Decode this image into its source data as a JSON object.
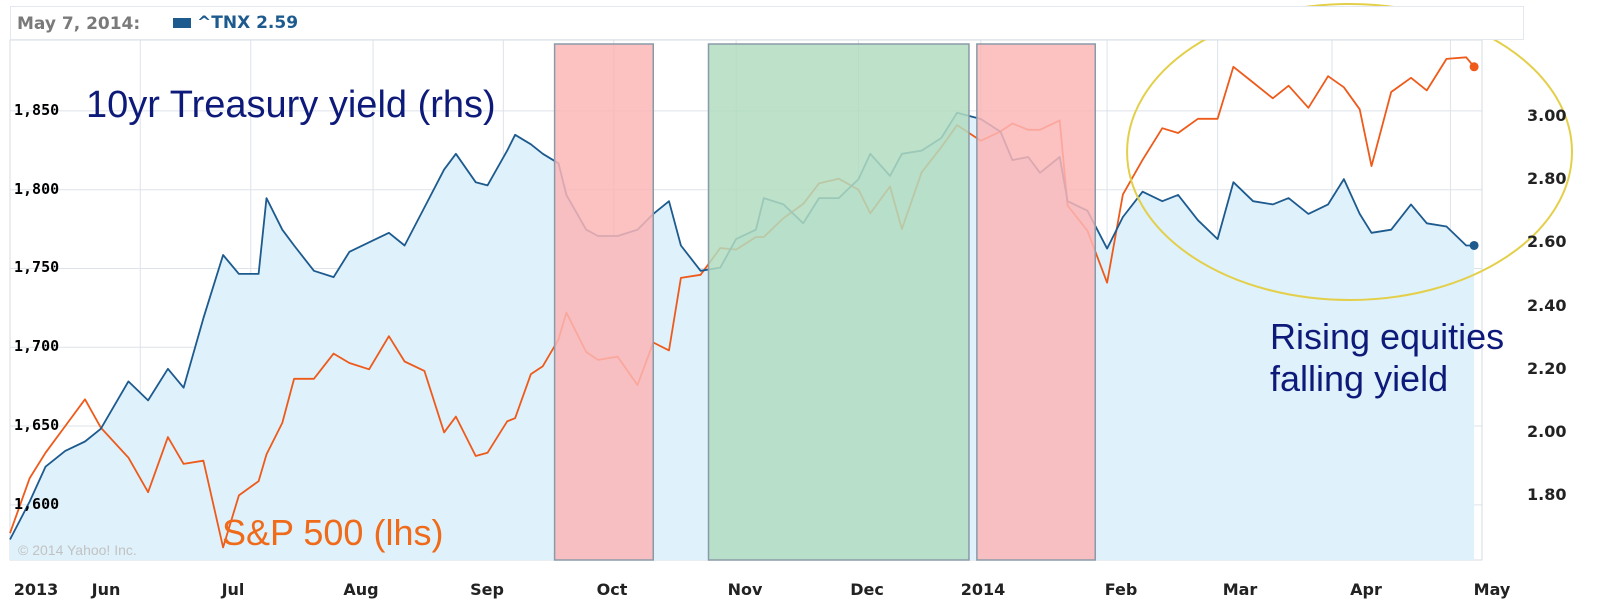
{
  "header": {
    "date": "May 7, 2014:",
    "series_label": "^TNX 2.59",
    "series_color": "#1d5a8e"
  },
  "copyright": "© 2014 Yahoo! Inc.",
  "annotations": {
    "tnx_label": "10yr Treasury yield (rhs)",
    "spx_label": "S&P 500 (lhs)",
    "rising_line1": "Rising equities",
    "rising_line2": "falling yield"
  },
  "chart_data": {
    "type": "line",
    "x_labels": [
      "2013",
      "Jun",
      "Jul",
      "Aug",
      "Sep",
      "Oct",
      "Nov",
      "Dec",
      "2014",
      "Feb",
      "Mar",
      "Apr",
      "May"
    ],
    "left_axis": {
      "ticks": [
        "1,600",
        "1,650",
        "1,700",
        "1,750",
        "1,800",
        "1,850"
      ],
      "range": [
        1565,
        1895
      ]
    },
    "right_axis": {
      "ticks": [
        "1.80",
        "2.00",
        "2.20",
        "2.40",
        "2.60",
        "2.80",
        "3.00"
      ],
      "range": [
        1.595,
        3.24
      ]
    },
    "shaded_regions": [
      {
        "start": "2013-09-16",
        "end": "2013-10-11",
        "color": "#fbb6b6"
      },
      {
        "start": "2013-10-25",
        "end": "2013-12-30",
        "color": "#b2dcc0"
      },
      {
        "start": "2014-01-01",
        "end": "2014-01-31",
        "color": "#fbb6b6"
      }
    ],
    "highlight": {
      "shape": "ellipse",
      "start": "2014-02-03",
      "end": "2014-05-07",
      "color": "#e3cf4a"
    },
    "series": [
      {
        "name": "^TNX",
        "axis": "right",
        "color": "#1d5a8e",
        "fill": "#dff1fb",
        "points": [
          [
            "2013-05-01",
            1.66
          ],
          [
            "2013-05-06",
            1.78
          ],
          [
            "2013-05-10",
            1.89
          ],
          [
            "2013-05-15",
            1.94
          ],
          [
            "2013-05-20",
            1.97
          ],
          [
            "2013-05-24",
            2.01
          ],
          [
            "2013-05-31",
            2.16
          ],
          [
            "2013-06-05",
            2.1
          ],
          [
            "2013-06-10",
            2.2
          ],
          [
            "2013-06-14",
            2.14
          ],
          [
            "2013-06-19",
            2.36
          ],
          [
            "2013-06-24",
            2.56
          ],
          [
            "2013-06-28",
            2.5
          ],
          [
            "2013-07-03",
            2.5
          ],
          [
            "2013-07-05",
            2.74
          ],
          [
            "2013-07-09",
            2.64
          ],
          [
            "2013-07-12",
            2.59
          ],
          [
            "2013-07-17",
            2.51
          ],
          [
            "2013-07-22",
            2.49
          ],
          [
            "2013-07-26",
            2.57
          ],
          [
            "2013-07-31",
            2.6
          ],
          [
            "2013-08-05",
            2.63
          ],
          [
            "2013-08-09",
            2.59
          ],
          [
            "2013-08-14",
            2.71
          ],
          [
            "2013-08-19",
            2.83
          ],
          [
            "2013-08-22",
            2.88
          ],
          [
            "2013-08-27",
            2.79
          ],
          [
            "2013-08-30",
            2.78
          ],
          [
            "2013-09-04",
            2.89
          ],
          [
            "2013-09-06",
            2.94
          ],
          [
            "2013-09-10",
            2.91
          ],
          [
            "2013-09-13",
            2.88
          ],
          [
            "2013-09-17",
            2.85
          ],
          [
            "2013-09-19",
            2.75
          ],
          [
            "2013-09-24",
            2.64
          ],
          [
            "2013-09-27",
            2.62
          ],
          [
            "2013-10-02",
            2.62
          ],
          [
            "2013-10-07",
            2.64
          ],
          [
            "2013-10-11",
            2.69
          ],
          [
            "2013-10-15",
            2.73
          ],
          [
            "2013-10-18",
            2.59
          ],
          [
            "2013-10-23",
            2.51
          ],
          [
            "2013-10-28",
            2.52
          ],
          [
            "2013-11-01",
            2.61
          ],
          [
            "2013-11-06",
            2.64
          ],
          [
            "2013-11-08",
            2.74
          ],
          [
            "2013-11-13",
            2.72
          ],
          [
            "2013-11-18",
            2.66
          ],
          [
            "2013-11-22",
            2.74
          ],
          [
            "2013-11-27",
            2.74
          ],
          [
            "2013-12-02",
            2.8
          ],
          [
            "2013-12-05",
            2.88
          ],
          [
            "2013-12-10",
            2.81
          ],
          [
            "2013-12-13",
            2.88
          ],
          [
            "2013-12-18",
            2.89
          ],
          [
            "2013-12-23",
            2.93
          ],
          [
            "2013-12-27",
            3.01
          ],
          [
            "2014-01-02",
            2.99
          ],
          [
            "2014-01-07",
            2.95
          ],
          [
            "2014-01-10",
            2.86
          ],
          [
            "2014-01-14",
            2.87
          ],
          [
            "2014-01-17",
            2.82
          ],
          [
            "2014-01-22",
            2.87
          ],
          [
            "2014-01-24",
            2.73
          ],
          [
            "2014-01-29",
            2.7
          ],
          [
            "2014-02-03",
            2.58
          ],
          [
            "2014-02-07",
            2.68
          ],
          [
            "2014-02-12",
            2.76
          ],
          [
            "2014-02-17",
            2.73
          ],
          [
            "2014-02-21",
            2.75
          ],
          [
            "2014-02-26",
            2.67
          ],
          [
            "2014-03-03",
            2.61
          ],
          [
            "2014-03-07",
            2.79
          ],
          [
            "2014-03-12",
            2.73
          ],
          [
            "2014-03-17",
            2.72
          ],
          [
            "2014-03-21",
            2.74
          ],
          [
            "2014-03-26",
            2.69
          ],
          [
            "2014-03-31",
            2.72
          ],
          [
            "2014-04-04",
            2.8
          ],
          [
            "2014-04-08",
            2.69
          ],
          [
            "2014-04-11",
            2.63
          ],
          [
            "2014-04-16",
            2.64
          ],
          [
            "2014-04-21",
            2.72
          ],
          [
            "2014-04-25",
            2.66
          ],
          [
            "2014-04-30",
            2.65
          ],
          [
            "2014-05-05",
            2.59
          ],
          [
            "2014-05-07",
            2.59
          ]
        ]
      },
      {
        "name": "S&P 500",
        "axis": "left",
        "color": "#ee5a1a",
        "points": [
          [
            "2013-05-01",
            1582
          ],
          [
            "2013-05-06",
            1617
          ],
          [
            "2013-05-10",
            1633
          ],
          [
            "2013-05-15",
            1650
          ],
          [
            "2013-05-20",
            1667
          ],
          [
            "2013-05-24",
            1649
          ],
          [
            "2013-05-31",
            1630
          ],
          [
            "2013-06-05",
            1608
          ],
          [
            "2013-06-10",
            1643
          ],
          [
            "2013-06-14",
            1626
          ],
          [
            "2013-06-19",
            1628
          ],
          [
            "2013-06-24",
            1573
          ],
          [
            "2013-06-28",
            1606
          ],
          [
            "2013-07-03",
            1615
          ],
          [
            "2013-07-05",
            1632
          ],
          [
            "2013-07-09",
            1652
          ],
          [
            "2013-07-12",
            1680
          ],
          [
            "2013-07-17",
            1680
          ],
          [
            "2013-07-22",
            1696
          ],
          [
            "2013-07-26",
            1690
          ],
          [
            "2013-07-31",
            1686
          ],
          [
            "2013-08-05",
            1707
          ],
          [
            "2013-08-09",
            1691
          ],
          [
            "2013-08-14",
            1685
          ],
          [
            "2013-08-19",
            1646
          ],
          [
            "2013-08-22",
            1656
          ],
          [
            "2013-08-27",
            1631
          ],
          [
            "2013-08-30",
            1633
          ],
          [
            "2013-09-04",
            1653
          ],
          [
            "2013-09-06",
            1655
          ],
          [
            "2013-09-10",
            1683
          ],
          [
            "2013-09-13",
            1688
          ],
          [
            "2013-09-17",
            1705
          ],
          [
            "2013-09-19",
            1722
          ],
          [
            "2013-09-24",
            1697
          ],
          [
            "2013-09-27",
            1692
          ],
          [
            "2013-10-02",
            1694
          ],
          [
            "2013-10-07",
            1676
          ],
          [
            "2013-10-11",
            1703
          ],
          [
            "2013-10-15",
            1698
          ],
          [
            "2013-10-18",
            1744
          ],
          [
            "2013-10-23",
            1746
          ],
          [
            "2013-10-28",
            1763
          ],
          [
            "2013-11-01",
            1762
          ],
          [
            "2013-11-06",
            1770
          ],
          [
            "2013-11-08",
            1770
          ],
          [
            "2013-11-13",
            1782
          ],
          [
            "2013-11-18",
            1791
          ],
          [
            "2013-11-22",
            1804
          ],
          [
            "2013-11-27",
            1807
          ],
          [
            "2013-12-02",
            1800
          ],
          [
            "2013-12-05",
            1785
          ],
          [
            "2013-12-10",
            1802
          ],
          [
            "2013-12-13",
            1775
          ],
          [
            "2013-12-18",
            1811
          ],
          [
            "2013-12-23",
            1827
          ],
          [
            "2013-12-27",
            1841
          ],
          [
            "2014-01-02",
            1831
          ],
          [
            "2014-01-07",
            1837
          ],
          [
            "2014-01-10",
            1842
          ],
          [
            "2014-01-14",
            1838
          ],
          [
            "2014-01-17",
            1838
          ],
          [
            "2014-01-22",
            1844
          ],
          [
            "2014-01-24",
            1790
          ],
          [
            "2014-01-29",
            1774
          ],
          [
            "2014-02-03",
            1741
          ],
          [
            "2014-02-07",
            1797
          ],
          [
            "2014-02-12",
            1819
          ],
          [
            "2014-02-17",
            1839
          ],
          [
            "2014-02-21",
            1836
          ],
          [
            "2014-02-26",
            1845
          ],
          [
            "2014-03-03",
            1845
          ],
          [
            "2014-03-07",
            1878
          ],
          [
            "2014-03-12",
            1868
          ],
          [
            "2014-03-17",
            1858
          ],
          [
            "2014-03-21",
            1866
          ],
          [
            "2014-03-26",
            1852
          ],
          [
            "2014-03-31",
            1872
          ],
          [
            "2014-04-04",
            1865
          ],
          [
            "2014-04-08",
            1851
          ],
          [
            "2014-04-11",
            1815
          ],
          [
            "2014-04-16",
            1862
          ],
          [
            "2014-04-21",
            1871
          ],
          [
            "2014-04-25",
            1863
          ],
          [
            "2014-04-30",
            1883
          ],
          [
            "2014-05-05",
            1884
          ],
          [
            "2014-05-07",
            1878
          ]
        ]
      }
    ]
  }
}
